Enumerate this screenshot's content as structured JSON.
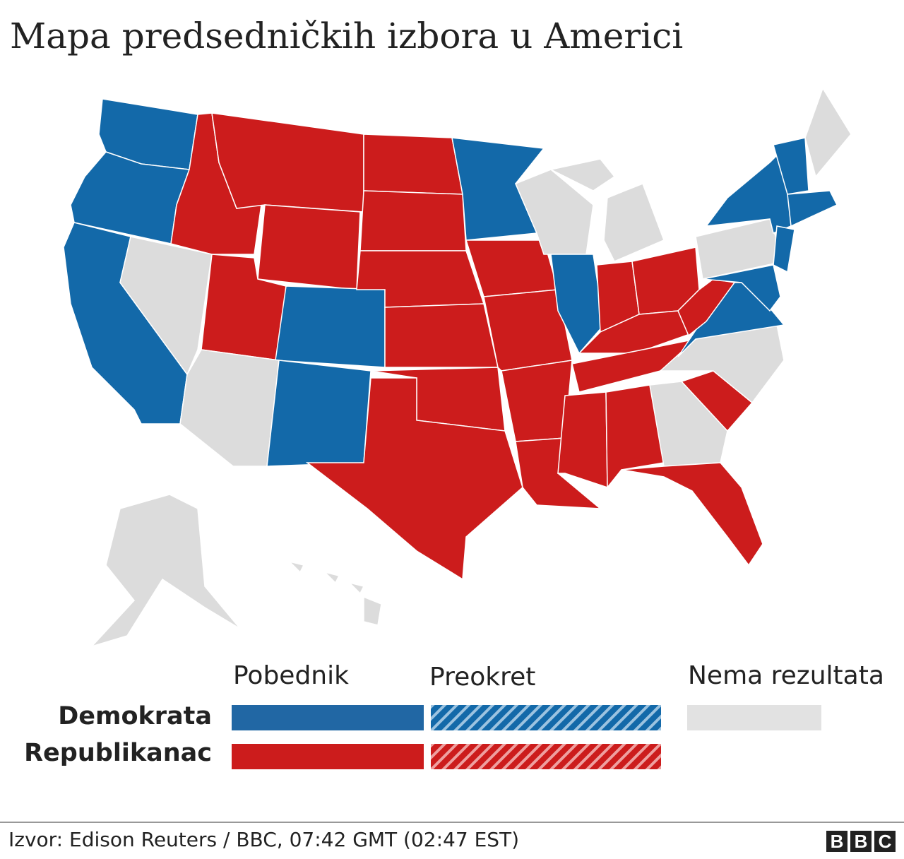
{
  "header": {
    "title": "Mapa predsedničkih izbora u Americi"
  },
  "legend": {
    "columns": [
      "Pobednik",
      "Preokret",
      "Nema rezultata"
    ],
    "rows": [
      "Demokrata",
      "Republikanac"
    ]
  },
  "footer": {
    "source": "Izvor: Edison Reuters / BBC, 07:42 GMT (02:47 EST)",
    "logo": [
      "B",
      "B",
      "C"
    ]
  }
}
